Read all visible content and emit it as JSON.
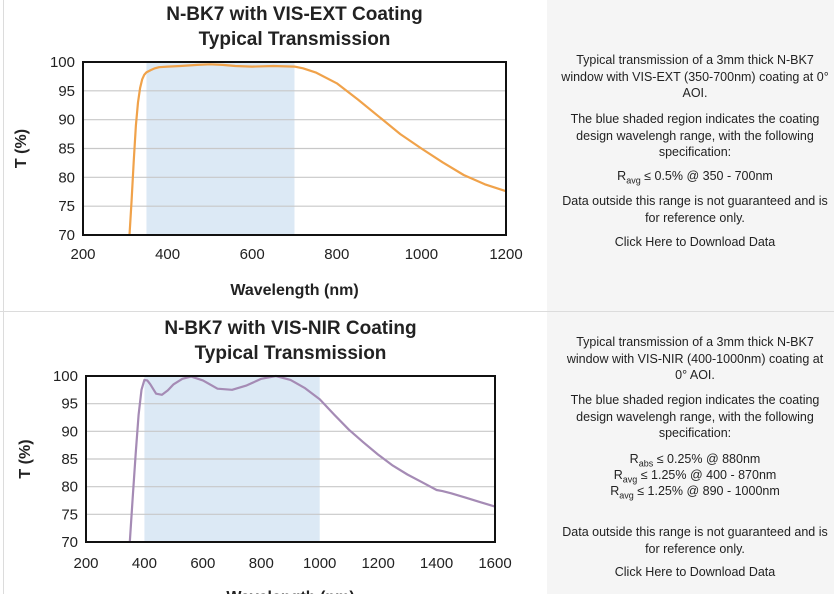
{
  "panels": [
    {
      "chart_data": {
        "type": "line",
        "title": [
          "N-BK7 with VIS-EXT Coating",
          "Typical Transmission"
        ],
        "xlabel": "Wavelength (nm)",
        "ylabel": "T (%)",
        "xlim": [
          200,
          1200
        ],
        "ylim": [
          70,
          100
        ],
        "xticks": [
          200,
          400,
          600,
          800,
          1000,
          1200
        ],
        "yticks": [
          70,
          75,
          80,
          85,
          90,
          95,
          100
        ],
        "grid": "horizontal",
        "shaded_range": [
          350,
          700
        ],
        "shade_color": "#dce9f5",
        "line_color": "#f0a24a",
        "series": [
          {
            "x": [
              310,
              315,
              320,
              325,
              330,
              335,
              340,
              345,
              350,
              360,
              370,
              380,
              400,
              430,
              470,
              500,
              530,
              560,
              600,
              650,
              700,
              720,
              750,
              800,
              850,
              900,
              950,
              1000,
              1050,
              1100,
              1150,
              1200
            ],
            "y": [
              70,
              76,
              83,
              89,
              93,
              95.5,
              97,
              97.8,
              98.2,
              98.6,
              98.9,
              99.1,
              99.2,
              99.3,
              99.5,
              99.6,
              99.5,
              99.3,
              99.2,
              99.3,
              99.2,
              98.9,
              98.2,
              96.3,
              93.5,
              90.5,
              87.5,
              85,
              82.6,
              80.4,
              78.8,
              77.6
            ]
          }
        ]
      },
      "desc": {
        "p1": "Typical transmission of a 3mm thick N-BK7 window with VIS-EXT (350-700nm) coating at 0° AOI.",
        "p2": "The blue shaded region indicates the coating design wavelengh range, with the following specification:",
        "specs": [
          {
            "sym": "R",
            "sub": "avg",
            "rest": " ≤ 0.5% @ 350 - 700nm"
          }
        ],
        "p3": "Data outside this range is not guaranteed and is for reference only.",
        "link": "Click Here to Download Data"
      }
    },
    {
      "chart_data": {
        "type": "line",
        "title": [
          "N-BK7 with VIS-NIR Coating",
          "Typical Transmission"
        ],
        "xlabel": "Wavelength (nm)",
        "ylabel": "T (%)",
        "xlim": [
          200,
          1600
        ],
        "ylim": [
          70,
          100
        ],
        "xticks": [
          200,
          400,
          600,
          800,
          1000,
          1200,
          1400,
          1600
        ],
        "yticks": [
          70,
          75,
          80,
          85,
          90,
          95,
          100
        ],
        "grid": "horizontal",
        "shaded_range": [
          400,
          1000
        ],
        "shade_color": "#dce9f5",
        "line_color": "#a58bb5",
        "series": [
          {
            "x": [
              350,
              360,
              370,
              380,
              390,
              400,
              410,
              420,
              440,
              460,
              480,
              500,
              530,
              560,
              600,
              650,
              700,
              750,
              800,
              850,
              900,
              950,
              1000,
              1050,
              1100,
              1150,
              1200,
              1250,
              1300,
              1350,
              1400,
              1420,
              1450,
              1500,
              1550,
              1600
            ],
            "y": [
              70,
              78,
              86,
              93,
              97.5,
              99.3,
              99.2,
              98.5,
              96.8,
              96.6,
              97.4,
              98.5,
              99.5,
              99.9,
              99.2,
              97.7,
              97.5,
              98.3,
              99.5,
              100,
              99.3,
              97.8,
              95.8,
              93,
              90.3,
              88,
              85.8,
              83.8,
              82.2,
              80.8,
              79.4,
              79.2,
              78.8,
              78,
              77.2,
              76.4
            ]
          }
        ]
      },
      "desc": {
        "p1": "Typical transmission of a 3mm thick N-BK7 window with VIS-NIR (400-1000nm) coating at 0° AOI.",
        "p2": "The blue shaded region indicates the coating design wavelengh range, with the following specification:",
        "specs": [
          {
            "sym": "R",
            "sub": "abs",
            "rest": " ≤ 0.25% @ 880nm"
          },
          {
            "sym": "R",
            "sub": "avg",
            "rest": " ≤ 1.25% @ 400 - 870nm"
          },
          {
            "sym": "R",
            "sub": "avg",
            "rest": " ≤ 1.25% @ 890 - 1000nm"
          }
        ],
        "p3": "Data outside this range is not guaranteed and is for reference only.",
        "link": "Click Here to Download Data"
      }
    }
  ]
}
